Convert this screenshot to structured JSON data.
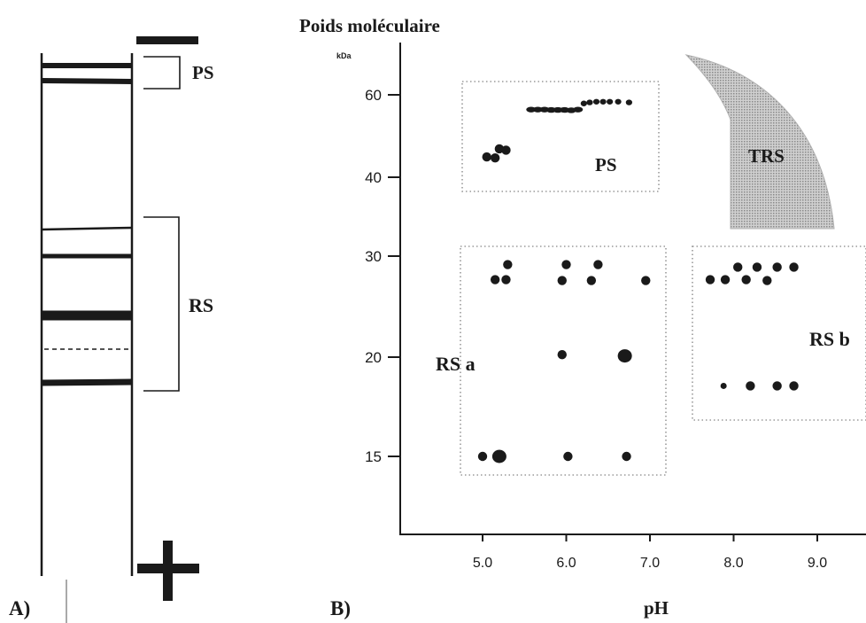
{
  "panel_a": {
    "label": "A)",
    "ps_label": "PS",
    "rs_label": "RS",
    "minus_sign_visible": true,
    "plus_sign_visible": true
  },
  "panel_b": {
    "label": "B)",
    "ylabel": "Poids moléculaire",
    "yunit": "kDa",
    "xlabel": "pH",
    "region_labels": {
      "ps": "PS",
      "trs": "TRS",
      "rsa": "RS a",
      "rsb": "RS b"
    },
    "colors": {
      "ink": "#1a1a1a",
      "region_box": "#9a9a9a",
      "trs_fill": "#bdbdbd"
    }
  },
  "chart_data": {
    "type": "scatter",
    "title": "",
    "xlabel": "pH",
    "ylabel": "Poids moléculaire",
    "yunit": "kDa",
    "x_ticks": [
      "5.0",
      "6.0",
      "7.0",
      "8.0",
      "9.0"
    ],
    "y_ticks": [
      "15",
      "20",
      "30",
      "40",
      "60"
    ],
    "y_scale": "log",
    "xlim": [
      4.0,
      9.5
    ],
    "ylim": [
      12,
      85
    ],
    "grid": false,
    "groups": [
      {
        "name": "PS",
        "points": [
          {
            "x": 5.05,
            "y": 44.2
          },
          {
            "x": 5.15,
            "y": 44.0
          },
          {
            "x": 5.2,
            "y": 46.0
          },
          {
            "x": 5.28,
            "y": 45.7
          },
          {
            "x": 5.58,
            "y": 55.8
          },
          {
            "x": 5.66,
            "y": 55.8
          },
          {
            "x": 5.74,
            "y": 55.8
          },
          {
            "x": 5.82,
            "y": 55.7
          },
          {
            "x": 5.9,
            "y": 55.7
          },
          {
            "x": 5.98,
            "y": 55.7
          },
          {
            "x": 6.06,
            "y": 55.6
          },
          {
            "x": 6.14,
            "y": 55.8
          },
          {
            "x": 6.21,
            "y": 57.5
          },
          {
            "x": 6.28,
            "y": 57.8
          },
          {
            "x": 6.36,
            "y": 58.0
          },
          {
            "x": 6.44,
            "y": 58.0
          },
          {
            "x": 6.52,
            "y": 58.0
          },
          {
            "x": 6.62,
            "y": 58.0
          },
          {
            "x": 6.75,
            "y": 57.8
          }
        ]
      },
      {
        "name": "RS a",
        "points": [
          {
            "x": 5.3,
            "y": 29.0
          },
          {
            "x": 6.0,
            "y": 29.0
          },
          {
            "x": 6.38,
            "y": 29.0
          },
          {
            "x": 5.15,
            "y": 27.3
          },
          {
            "x": 5.28,
            "y": 27.3
          },
          {
            "x": 5.95,
            "y": 27.2
          },
          {
            "x": 6.3,
            "y": 27.2
          },
          {
            "x": 6.95,
            "y": 27.2
          },
          {
            "x": 5.95,
            "y": 20.2
          },
          {
            "x": 6.7,
            "y": 20.1
          },
          {
            "x": 5.0,
            "y": 15.0
          },
          {
            "x": 5.2,
            "y": 15.0
          },
          {
            "x": 6.02,
            "y": 15.0
          },
          {
            "x": 6.72,
            "y": 15.0
          }
        ]
      },
      {
        "name": "RS b",
        "points": [
          {
            "x": 8.05,
            "y": 28.7
          },
          {
            "x": 8.28,
            "y": 28.7
          },
          {
            "x": 8.52,
            "y": 28.7
          },
          {
            "x": 8.72,
            "y": 28.7
          },
          {
            "x": 7.72,
            "y": 27.3
          },
          {
            "x": 7.9,
            "y": 27.3
          },
          {
            "x": 8.15,
            "y": 27.3
          },
          {
            "x": 8.4,
            "y": 27.2
          },
          {
            "x": 7.88,
            "y": 18.4
          },
          {
            "x": 8.2,
            "y": 18.4
          },
          {
            "x": 8.52,
            "y": 18.4
          },
          {
            "x": 8.72,
            "y": 18.4
          }
        ]
      },
      {
        "name": "TRS",
        "shape": "shaded region",
        "points": []
      }
    ]
  }
}
